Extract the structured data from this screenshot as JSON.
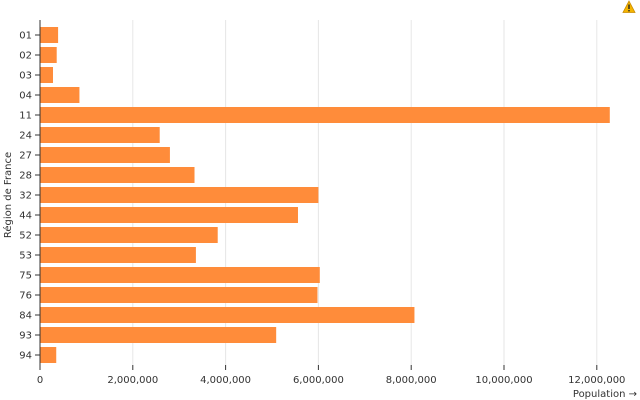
{
  "chart_data": {
    "type": "bar",
    "orientation": "horizontal",
    "categories": [
      "01",
      "02",
      "03",
      "04",
      "11",
      "24",
      "27",
      "28",
      "32",
      "44",
      "52",
      "53",
      "75",
      "76",
      "84",
      "93",
      "94"
    ],
    "values": [
      390000,
      360000,
      280000,
      850000,
      12280000,
      2580000,
      2800000,
      3330000,
      6000000,
      5560000,
      3830000,
      3360000,
      6030000,
      5980000,
      8070000,
      5090000,
      350000
    ],
    "xlabel": "Population →",
    "ylabel": "Région de France",
    "xlim": [
      0,
      12500000
    ],
    "xticks": [
      0,
      2000000,
      4000000,
      6000000,
      8000000,
      10000000,
      12000000
    ],
    "xtick_labels": [
      "0",
      "2,000,000",
      "4,000,000",
      "6,000,000",
      "8,000,000",
      "10,000,000",
      "12,000,000"
    ],
    "grid": "vertical",
    "bar_color": "#ff8c3a"
  },
  "warning_icon": "warning-icon",
  "warning_color": "#f4b400"
}
